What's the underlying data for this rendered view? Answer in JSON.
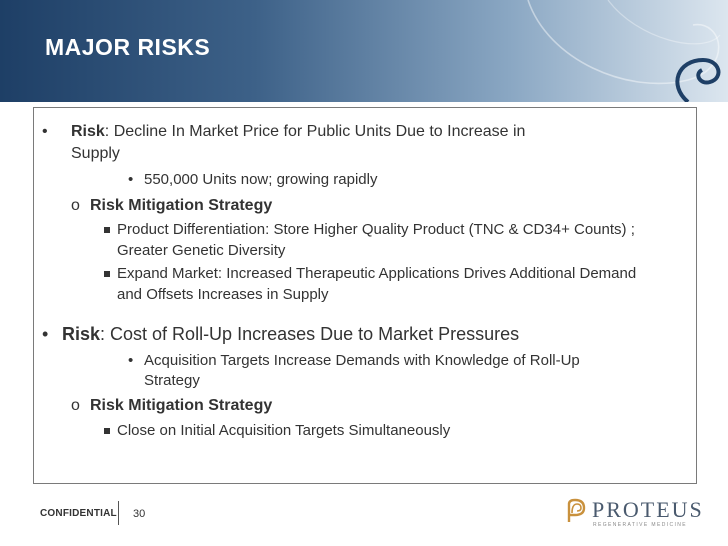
{
  "slide": {
    "title": "MAJOR RISKS"
  },
  "risk1": {
    "bullet": "•",
    "label": "Risk",
    "text_line1": ":  Decline In Market Price for Public Units Due to Increase in",
    "text_line2": "Supply",
    "sub_bullet": "•",
    "sub_item": "550,000 Units now; growing rapidly",
    "mitigation_marker": "o",
    "mitigation_title": "Risk Mitigation Strategy",
    "strategies": [
      {
        "line1": "Product Differentiation:  Store Higher Quality Product (TNC & CD34+ Counts) ;",
        "line2": "Greater  Genetic Diversity"
      },
      {
        "line1": "Expand Market: Increased  Therapeutic Applications Drives Additional Demand",
        "line2": "and Offsets  Increases in Supply"
      }
    ]
  },
  "risk2": {
    "bullet": "•",
    "label": "Risk",
    "text": ":  Cost of Roll-Up Increases  Due to Market Pressures",
    "sub_bullet": "•",
    "sub_item_line1": "Acquisition Targets Increase Demands  with Knowledge of  Roll-Up",
    "sub_item_line2": "Strategy",
    "mitigation_marker": "o",
    "mitigation_title": "Risk Mitigation Strategy",
    "strategies": [
      {
        "line1": "Close on Initial Acquisition Targets Simultaneously"
      }
    ]
  },
  "footer": {
    "confidential": "CONFIDENTIAL",
    "page_number": "30",
    "logo_name": "PROTEUS",
    "logo_tagline": "REGENERATIVE MEDICINE"
  },
  "colors": {
    "header_dark": "#1e3f66",
    "header_light": "#dce6ef",
    "text": "#333333",
    "logo": "#4a5a6e",
    "logo_mark": "#c9913d"
  }
}
